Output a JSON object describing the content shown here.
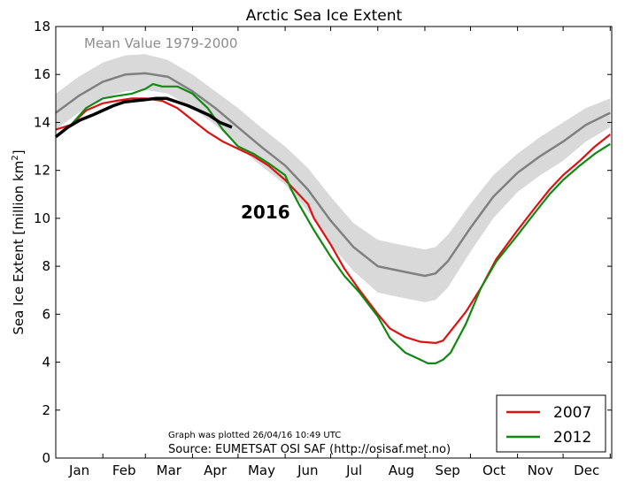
{
  "chart_data": {
    "type": "line",
    "title": "Arctic Sea Ice Extent",
    "xlabel": "",
    "ylabel": "Sea Ice Extent [million km²]",
    "ylabel_main": "Sea Ice Extent [million km",
    "ylabel_sup": "2",
    "ylabel_end": "]",
    "ylim": [
      0,
      18
    ],
    "xlim": [
      0,
      366
    ],
    "yticks": [
      0,
      2,
      4,
      6,
      8,
      10,
      12,
      14,
      16,
      18
    ],
    "month_labels": [
      "Jan",
      "Feb",
      "Mar",
      "Apr",
      "May",
      "Jun",
      "Jul",
      "Aug",
      "Sep",
      "Oct",
      "Nov",
      "Dec"
    ],
    "grid": false,
    "legend_position": "bottom-right",
    "annotations": {
      "mean_label": "Mean Value 1979-2000",
      "year_label": "2016",
      "plotted": "Graph was plotted 26/04/16 10:49 UTC",
      "source": "Source: EUMETSAT OSI SAF (http://osisaf.met.no)"
    },
    "colors": {
      "mean": "#808080",
      "band": "#d9d9d9",
      "s2007": "#dd1111",
      "s2012": "#118811",
      "s2016": "#000000"
    },
    "mean_band": {
      "name": "Mean Value 1979-2000",
      "x": [
        0,
        15,
        31,
        46,
        59,
        74,
        90,
        105,
        120,
        135,
        151,
        166,
        181,
        196,
        212,
        227,
        243,
        250,
        258,
        273,
        288,
        304,
        319,
        334,
        349,
        365
      ],
      "mean": [
        14.4,
        15.1,
        15.7,
        16.0,
        16.05,
        15.9,
        15.3,
        14.6,
        13.8,
        13.0,
        12.2,
        11.2,
        9.9,
        8.8,
        8.0,
        7.8,
        7.6,
        7.7,
        8.2,
        9.6,
        10.9,
        11.9,
        12.6,
        13.2,
        13.9,
        14.4
      ],
      "upper": [
        15.2,
        15.9,
        16.5,
        16.8,
        16.85,
        16.6,
        16.0,
        15.3,
        14.6,
        13.8,
        13.0,
        12.1,
        10.9,
        9.8,
        9.1,
        8.9,
        8.7,
        8.8,
        9.3,
        10.6,
        11.8,
        12.7,
        13.4,
        14.0,
        14.6,
        15.0
      ],
      "lower": [
        13.7,
        14.4,
        15.0,
        15.3,
        15.35,
        15.2,
        14.6,
        13.9,
        13.0,
        12.2,
        11.4,
        10.3,
        8.9,
        7.8,
        6.9,
        6.7,
        6.5,
        6.6,
        7.1,
        8.6,
        10.0,
        11.1,
        11.8,
        12.4,
        13.2,
        13.8
      ]
    },
    "series": [
      {
        "name": "2007",
        "x": [
          0,
          10,
          20,
          31,
          40,
          50,
          59,
          70,
          80,
          90,
          100,
          110,
          120,
          130,
          140,
          151,
          160,
          166,
          170,
          181,
          190,
          200,
          212,
          220,
          230,
          240,
          250,
          255,
          260,
          270,
          280,
          290,
          304,
          315,
          325,
          334,
          345,
          355,
          365
        ],
        "values": [
          13.7,
          13.9,
          14.5,
          14.8,
          14.9,
          15.0,
          15.0,
          14.9,
          14.6,
          14.1,
          13.6,
          13.2,
          12.9,
          12.6,
          12.2,
          11.6,
          11.0,
          10.6,
          10.0,
          8.9,
          7.9,
          7.0,
          6.0,
          5.4,
          5.05,
          4.85,
          4.8,
          4.9,
          5.3,
          6.1,
          7.1,
          8.3,
          9.5,
          10.4,
          11.2,
          11.8,
          12.4,
          13.0,
          13.5
        ]
      },
      {
        "name": "2012",
        "x": [
          0,
          10,
          20,
          31,
          40,
          50,
          59,
          64,
          70,
          80,
          90,
          100,
          110,
          120,
          130,
          140,
          151,
          155,
          160,
          170,
          181,
          190,
          200,
          212,
          220,
          230,
          240,
          245,
          250,
          255,
          260,
          270,
          280,
          290,
          304,
          315,
          325,
          334,
          345,
          355,
          365
        ],
        "values": [
          13.4,
          13.9,
          14.6,
          15.0,
          15.1,
          15.2,
          15.4,
          15.6,
          15.5,
          15.5,
          15.2,
          14.6,
          13.7,
          13.0,
          12.7,
          12.3,
          11.8,
          11.2,
          10.6,
          9.5,
          8.4,
          7.6,
          6.9,
          5.9,
          5.0,
          4.4,
          4.1,
          3.95,
          3.95,
          4.1,
          4.4,
          5.6,
          7.1,
          8.2,
          9.3,
          10.2,
          11.0,
          11.6,
          12.2,
          12.7,
          13.1
        ]
      },
      {
        "name": "2016",
        "x": [
          0,
          8,
          16,
          24,
          31,
          38,
          45,
          52,
          59,
          66,
          73,
          80,
          87,
          94,
          101,
          108,
          116
        ],
        "values": [
          13.4,
          13.8,
          14.1,
          14.3,
          14.5,
          14.7,
          14.85,
          14.9,
          14.95,
          15.0,
          15.0,
          14.85,
          14.7,
          14.5,
          14.3,
          14.0,
          13.8
        ]
      }
    ]
  }
}
